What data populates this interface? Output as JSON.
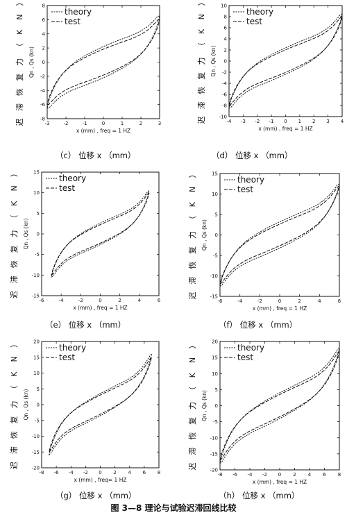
{
  "figure_caption": "图 3—8 理论与试验迟滞回线比较",
  "chart_data": [
    {
      "type": "line",
      "caption": "（c） 位移 x （mm）",
      "xlabel": "x (mm) , freq = 1 HZ",
      "ylabel": "Qn , Qs (kn)",
      "vlabel": [
        "迟",
        "滞",
        "恢",
        "复",
        "力",
        "（",
        "K",
        "N",
        "）"
      ],
      "xlim": [
        -3,
        3
      ],
      "ylim": [
        -8,
        8
      ],
      "xticks": [
        -3,
        -2,
        -1,
        0,
        1,
        2,
        3
      ],
      "yticks": [
        -8,
        -6,
        -4,
        -2,
        0,
        2,
        4,
        6,
        8
      ],
      "legend_position": "top-left",
      "series": [
        {
          "name": "theory",
          "amplitude": 3,
          "peak": 6.5,
          "offset": 2.2,
          "shift": 0
        },
        {
          "name": "test",
          "amplitude": 3,
          "peak": 6.0,
          "offset": 1.8,
          "shift": 0.3
        }
      ]
    },
    {
      "type": "line",
      "caption": "（d） 位移 x （mm）",
      "xlabel": "x (mm) , freq = 1 HZ",
      "ylabel": "Qn , Qs (kn)",
      "vlabel": [
        "迟",
        "滞",
        "恢",
        "复",
        "力",
        "（",
        "K",
        "N",
        "）"
      ],
      "xlim": [
        -4,
        4
      ],
      "ylim": [
        -10,
        10
      ],
      "xticks": [
        -4,
        -3,
        -2,
        -1,
        0,
        1,
        2,
        3,
        4
      ],
      "yticks": [
        -10,
        -8,
        -6,
        -4,
        -2,
        0,
        2,
        4,
        6,
        8,
        10
      ],
      "legend_position": "top-left",
      "series": [
        {
          "name": "theory",
          "amplitude": 4,
          "peak": 8.5,
          "offset": 2.4,
          "shift": 0
        },
        {
          "name": "test",
          "amplitude": 4,
          "peak": 8.0,
          "offset": 2.0,
          "shift": 0.3
        }
      ]
    },
    {
      "type": "line",
      "caption": "（e） 位移 x （mm）",
      "xlabel": "x (mm) , freq = 1 HZ",
      "ylabel": "Qn , Qs (kn)",
      "vlabel": [
        "迟",
        "滞",
        "恢",
        "复",
        "力",
        "（",
        "K",
        "N",
        "）"
      ],
      "xlim": [
        -6,
        6
      ],
      "ylim": [
        -15,
        15
      ],
      "xticks": [
        -6,
        -4,
        -2,
        0,
        2,
        4,
        6
      ],
      "yticks": [
        -15,
        -10,
        -5,
        0,
        5,
        10,
        15
      ],
      "legend_position": "top-left",
      "series": [
        {
          "name": "theory",
          "amplitude": 5,
          "peak": 10.5,
          "offset": 2.6,
          "shift": 0
        },
        {
          "name": "test",
          "amplitude": 5,
          "peak": 10.0,
          "offset": 2.2,
          "shift": 0.4
        }
      ]
    },
    {
      "type": "line",
      "caption": "（f） 位移 x （mm）",
      "xlabel": "x (mm) , freq = 1 HZ",
      "ylabel": "Qn , Qs (kn)",
      "vlabel": [
        "迟",
        "滞",
        "恢",
        "复",
        "力",
        "（",
        "K",
        "N",
        "）"
      ],
      "xlim": [
        -6,
        6
      ],
      "ylim": [
        -15,
        15
      ],
      "xticks": [
        -6,
        -4,
        -2,
        0,
        2,
        4,
        6
      ],
      "yticks": [
        -15,
        -10,
        -5,
        0,
        5,
        10,
        15
      ],
      "legend_position": "top-left",
      "series": [
        {
          "name": "theory",
          "amplitude": 6,
          "peak": 12.5,
          "offset": 3.2,
          "shift": 0
        },
        {
          "name": "test",
          "amplitude": 6,
          "peak": 12.0,
          "offset": 2.6,
          "shift": 0.4
        }
      ]
    },
    {
      "type": "line",
      "caption": "（g） 位移 x （mm）",
      "xlabel": "x (mm) , freq= 1 HZ",
      "ylabel": "Qn , Qs (kn)",
      "vlabel": [
        "迟",
        "滞",
        "恢",
        "复",
        "力",
        "（",
        "K",
        "N",
        "）"
      ],
      "xlim": [
        -8,
        8
      ],
      "ylim": [
        -20,
        20
      ],
      "xticks": [
        -8,
        -6,
        -4,
        -2,
        0,
        2,
        4,
        6,
        8
      ],
      "yticks": [
        -20,
        -15,
        -10,
        -5,
        0,
        5,
        10,
        15,
        20
      ],
      "legend_position": "top-left",
      "series": [
        {
          "name": "theory",
          "amplitude": 7,
          "peak": 16,
          "offset": 3.5,
          "shift": 0
        },
        {
          "name": "test",
          "amplitude": 7,
          "peak": 15,
          "offset": 3.0,
          "shift": 0.5
        }
      ]
    },
    {
      "type": "line",
      "caption": "（h） 位移 x （mm）",
      "xlabel": "x (mm) , freq = 1 HZ",
      "ylabel": "Qn , Qs (kn)",
      "vlabel": [
        "迟",
        "滞",
        "恢",
        "复",
        "力",
        "（",
        "K",
        "N",
        "）"
      ],
      "xlim": [
        -8,
        8
      ],
      "ylim": [
        -20,
        20
      ],
      "xticks": [
        -8,
        -6,
        -4,
        -2,
        0,
        2,
        4,
        6,
        8
      ],
      "yticks": [
        -20,
        -15,
        -10,
        -5,
        0,
        5,
        10,
        15,
        20
      ],
      "legend_position": "top-right",
      "series": [
        {
          "name": "theory",
          "amplitude": 8,
          "peak": 18,
          "offset": 4.0,
          "shift": 0
        },
        {
          "name": "test",
          "amplitude": 8,
          "peak": 17,
          "offset": 3.4,
          "shift": 0.5
        }
      ]
    }
  ]
}
